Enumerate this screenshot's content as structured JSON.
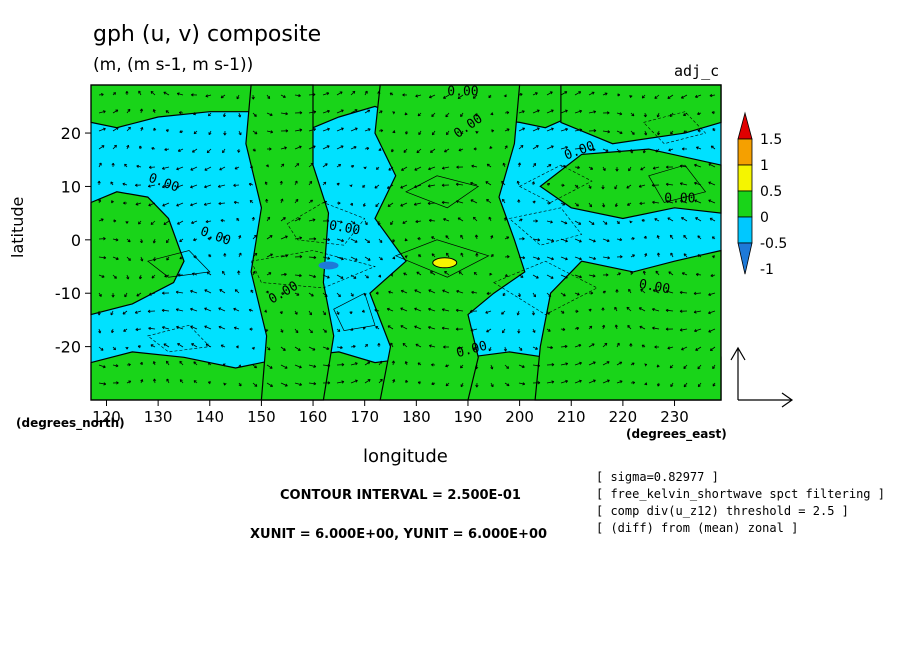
{
  "header": {
    "title": "gph (u, v) composite",
    "units": "(m, (m s-1, m s-1))",
    "tag": "adj_c"
  },
  "axes": {
    "xlabel": "longitude",
    "ylabel": "latitude",
    "x_unit_label": "(degrees_east)",
    "y_unit_label": "(degrees_north)"
  },
  "footer": {
    "contour_interval": "CONTOUR INTERVAL = 2.500E-01",
    "xy_unit": "XUNIT = 6.000E+00, YUNIT = 6.000E+00"
  },
  "notes": [
    "[ sigma=0.82977 ]",
    "[ free_kelvin_shortwave spct filtering ]",
    "[ comp div(u_z12) threshold = 2.5 ]",
    "[ (diff) from (mean) zonal ]"
  ],
  "chart_data": {
    "type": "heatmap",
    "title": "gph (u, v) composite",
    "subtitle": "(m, (m s-1, m s-1))",
    "xlabel": "longitude",
    "ylabel": "latitude",
    "xlim": [
      117,
      239
    ],
    "ylim": [
      -30,
      29
    ],
    "x_ticks": [
      120,
      130,
      140,
      150,
      160,
      170,
      180,
      190,
      200,
      210,
      220,
      230
    ],
    "x_tick_labels": [
      "120",
      "130",
      "140",
      "150",
      "160",
      "170",
      "180",
      "190",
      "200",
      "210",
      "220",
      "230"
    ],
    "y_ticks": [
      20,
      10,
      0,
      -10,
      -20
    ],
    "y_tick_labels": [
      "20",
      "10",
      "0",
      "-10",
      "-20"
    ],
    "contour_interval": 0.25,
    "colorbar": {
      "levels": [
        -1.5,
        -1,
        -0.5,
        0,
        0.5,
        1,
        1.5
      ],
      "labels": [
        "1.5",
        "1",
        "0.5",
        "0",
        "-0.5",
        "-1"
      ],
      "colors": [
        "#1e7ad8",
        "#00c8ff",
        "#19d419",
        "#f5f500",
        "#f5a000",
        "#e00000"
      ]
    },
    "background_color": "#00e1ff",
    "positive_color": "#19d419",
    "contour_labels": [
      "0.00",
      "0.00",
      "0.00",
      "0.00",
      "0.00",
      "0.00",
      "0.00",
      "0.00",
      "0.00",
      "0.00"
    ],
    "regions": [
      {
        "type": "positive",
        "lon": [
          117,
          239
        ],
        "lat": [
          22,
          29
        ]
      },
      {
        "type": "positive",
        "lon": [
          117,
          239
        ],
        "lat": [
          -30,
          -21
        ]
      },
      {
        "type": "positive",
        "lon": [
          117,
          130
        ],
        "lat": [
          -12,
          9
        ]
      },
      {
        "type": "positive",
        "lon": [
          172,
          200
        ],
        "lat": [
          -30,
          29
        ]
      },
      {
        "type": "positive",
        "lon": [
          205,
          239
        ],
        "lat": [
          -30,
          5
        ]
      },
      {
        "type": "positive",
        "lon": [
          150,
          163
        ],
        "lat": [
          -30,
          29
        ]
      },
      {
        "type": "maximum",
        "lon": [
          183,
          188
        ],
        "lat": [
          -5,
          -4
        ],
        "value": 0.5
      },
      {
        "type": "minimum",
        "lon": [
          161,
          165
        ],
        "lat": [
          -5,
          -4
        ],
        "value": -0.5
      }
    ],
    "vectors": {
      "x_unit": 6.0,
      "y_unit": 6.0
    }
  }
}
